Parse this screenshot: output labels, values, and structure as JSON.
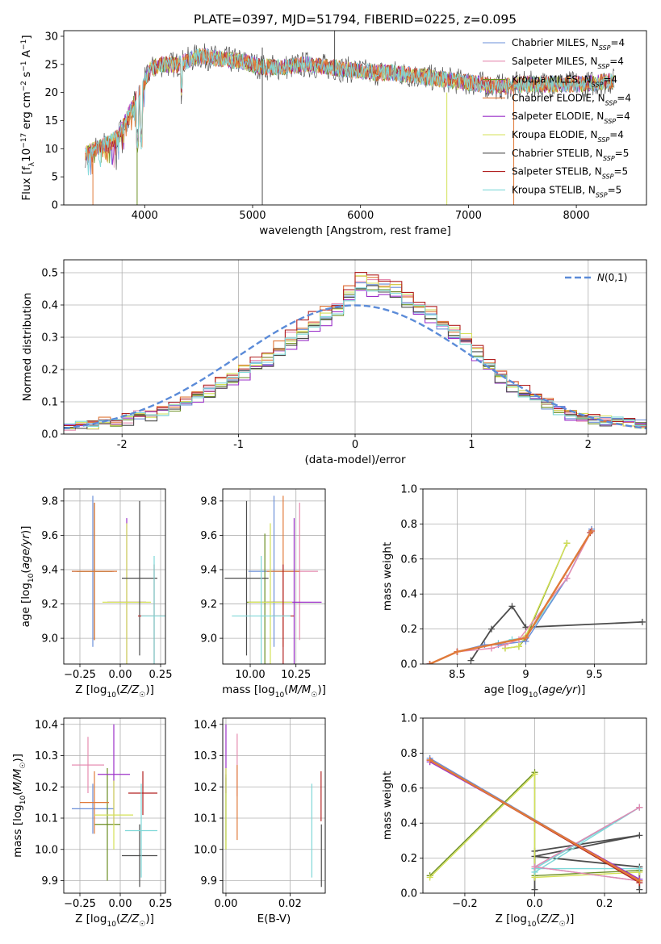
{
  "title": "PLATE=0397, MJD=51794, FIBERID=0225, z=0.095",
  "colors": {
    "Chabrier MILES": "#6a8fd8",
    "Salpeter MILES": "#e58bb0",
    "Kroupa MILES": "#6b8e23",
    "Chabrier ELODIE": "#e07a3a",
    "Salpeter ELODIE": "#9b30c8",
    "Kroupa ELODIE": "#d4e157",
    "Chabrier STELIB": "#4d4d4d",
    "Salpeter STELIB": "#b22222",
    "Kroupa STELIB": "#7fd8d8",
    "normal": "#5b8bd8"
  },
  "chart_data": [
    {
      "type": "line",
      "panel": "spectrum",
      "xlabel": "wavelength [Angstrom, rest frame]",
      "ylabel": "Flux [fλ10⁻¹⁷ erg cm⁻² s⁻¹ A⁻¹]",
      "xlim": [
        3250,
        8650
      ],
      "ylim": [
        0,
        31
      ],
      "xticks": [
        4000,
        5000,
        6000,
        7000,
        8000
      ],
      "yticks": [
        0,
        5,
        10,
        15,
        20,
        25,
        30
      ],
      "legend_placement": "top-right",
      "legend": [
        {
          "label": "Chabrier MILES, N",
          "sub": "SSP",
          "tail": "=4"
        },
        {
          "label": "Salpeter MILES, N",
          "sub": "SSP",
          "tail": "=4"
        },
        {
          "label": "Kroupa MILES, N",
          "sub": "SSP",
          "tail": "=4"
        },
        {
          "label": "Chabrier ELODIE, N",
          "sub": "SSP",
          "tail": "=4"
        },
        {
          "label": "Salpeter ELODIE, N",
          "sub": "SSP",
          "tail": "=4"
        },
        {
          "label": "Kroupa ELODIE, N",
          "sub": "SSP",
          "tail": "=4"
        },
        {
          "label": "Chabrier STELIB, N",
          "sub": "SSP",
          "tail": "=5"
        },
        {
          "label": "Salpeter STELIB, N",
          "sub": "SSP",
          "tail": "=5"
        },
        {
          "label": "Kroupa STELIB, N",
          "sub": "SSP",
          "tail": "=5"
        }
      ],
      "continuum": {
        "x": [
          3450,
          3550,
          3650,
          3750,
          3850,
          3950,
          4050,
          4150,
          4300,
          4500,
          4700,
          4900,
          5100,
          5300,
          5500,
          5700,
          5900,
          6100,
          6300,
          6500,
          6700,
          6900,
          7100,
          7300,
          7500,
          7700,
          7900,
          8100,
          8300
        ],
        "y": [
          9,
          10,
          11,
          12,
          16,
          20,
          24,
          25,
          25,
          26.5,
          26,
          25.5,
          24.5,
          24.5,
          25,
          24.5,
          24,
          23.5,
          23.5,
          23,
          22.5,
          22,
          21.5,
          21,
          21.5,
          21.5,
          21.5,
          21.5,
          22
        ]
      }
    },
    {
      "type": "bar",
      "panel": "residual-histogram",
      "xlabel": "(data-model)/error",
      "ylabel": "Normed distribution",
      "xlim": [
        -2.5,
        2.5
      ],
      "ylim": [
        0,
        0.54
      ],
      "xticks": [
        -2,
        -1,
        0,
        1,
        2
      ],
      "yticks": [
        0.0,
        0.1,
        0.2,
        0.3,
        0.4,
        0.5
      ],
      "bin_width": 0.1,
      "bin_start": -2.5,
      "reference_curve": "Gaussian mean 0, sigma 1",
      "legend": "N(0,1)",
      "legend_placement": "top-right",
      "values": [
        0.02,
        0.025,
        0.03,
        0.035,
        0.04,
        0.045,
        0.055,
        0.06,
        0.07,
        0.085,
        0.1,
        0.115,
        0.13,
        0.15,
        0.17,
        0.19,
        0.21,
        0.23,
        0.26,
        0.29,
        0.32,
        0.345,
        0.365,
        0.39,
        0.43,
        0.47,
        0.46,
        0.45,
        0.44,
        0.42,
        0.39,
        0.37,
        0.34,
        0.31,
        0.29,
        0.25,
        0.21,
        0.18,
        0.15,
        0.13,
        0.11,
        0.09,
        0.075,
        0.06,
        0.05,
        0.045,
        0.04,
        0.04,
        0.035,
        0.03
      ]
    },
    {
      "type": "scatter",
      "panel": "Z-vs-age",
      "xlabel": "Z [log10(Z/Z☉)]",
      "ylabel": "age [log10(age/yr)]",
      "xlim": [
        -0.35,
        0.28
      ],
      "ylim": [
        8.85,
        9.87
      ],
      "xticks": [
        -0.25,
        0.0,
        0.25
      ],
      "xtick_labels": [
        "−0.25",
        "0.00",
        "0.25"
      ],
      "yticks": [
        9.0,
        9.2,
        9.4,
        9.6,
        9.8
      ],
      "points": [
        {
          "series": "Chabrier MILES",
          "x": -0.17,
          "xe": 0.13,
          "y": 9.39,
          "ye": 0.44
        },
        {
          "series": "Salpeter MILES",
          "x": -0.16,
          "xe": 0.12,
          "y": 9.39,
          "ye": 0.4
        },
        {
          "series": "Kroupa MILES",
          "x": -0.16,
          "xe": 0.11,
          "y": 9.39,
          "ye": 0.4
        },
        {
          "series": "Chabrier ELODIE",
          "x": -0.16,
          "xe": 0.14,
          "y": 9.39,
          "ye": 0.4
        },
        {
          "series": "Salpeter ELODIE",
          "x": 0.04,
          "xe": 0.12,
          "y": 9.21,
          "ye": 0.49
        },
        {
          "series": "Kroupa ELODIE",
          "x": 0.04,
          "xe": 0.15,
          "y": 9.21,
          "ye": 0.46
        },
        {
          "series": "Chabrier STELIB",
          "x": 0.12,
          "xe": 0.11,
          "y": 9.35,
          "ye": 0.45
        },
        {
          "series": "Salpeter STELIB",
          "x": 0.21,
          "xe": 0.1,
          "y": 9.13,
          "ye": 0.3
        },
        {
          "series": "Kroupa STELIB",
          "x": 0.21,
          "xe": 0.08,
          "y": 9.13,
          "ye": 0.35
        }
      ]
    },
    {
      "type": "scatter",
      "panel": "mass-vs-age",
      "xlabel": "mass [log10(M/M☉)]",
      "ylabel": "",
      "xlim": [
        9.85,
        10.41
      ],
      "ylim": [
        8.85,
        9.87
      ],
      "xticks": [
        10.0,
        10.25
      ],
      "xtick_labels": [
        "10.00",
        "10.25"
      ],
      "yticks": [
        9.0,
        9.2,
        9.4,
        9.6,
        9.8
      ],
      "points": [
        {
          "series": "Chabrier MILES",
          "x": 10.13,
          "xe": 0.14,
          "y": 9.39,
          "ye": 0.44
        },
        {
          "series": "Salpeter MILES",
          "x": 10.27,
          "xe": 0.1,
          "y": 9.39,
          "ye": 0.4
        },
        {
          "series": "Kroupa MILES",
          "x": 10.08,
          "xe": 0.1,
          "y": 9.21,
          "ye": 0.4
        },
        {
          "series": "Chabrier ELODIE",
          "x": 10.18,
          "xe": 0.09,
          "y": 9.39,
          "ye": 0.44
        },
        {
          "series": "Salpeter ELODIE",
          "x": 10.24,
          "xe": 0.15,
          "y": 9.21,
          "ye": 0.49
        },
        {
          "series": "Kroupa ELODIE",
          "x": 10.11,
          "xe": 0.12,
          "y": 9.21,
          "ye": 0.46
        },
        {
          "series": "Chabrier STELIB",
          "x": 9.98,
          "xe": 0.12,
          "y": 9.35,
          "ye": 0.45
        },
        {
          "series": "Salpeter STELIB",
          "x": 10.18,
          "xe": 0.06,
          "y": 9.13,
          "ye": 0.3
        },
        {
          "series": "Kroupa STELIB",
          "x": 10.06,
          "xe": 0.16,
          "y": 9.13,
          "ye": 0.35
        }
      ]
    },
    {
      "type": "line",
      "panel": "age-mass-weight",
      "xlabel": "age [log10(age/yr)]",
      "ylabel": "mass weight",
      "xlim": [
        8.25,
        9.88
      ],
      "ylim": [
        0,
        1.0
      ],
      "xticks": [
        8.5,
        9.0,
        9.5
      ],
      "yticks": [
        0.0,
        0.2,
        0.4,
        0.6,
        0.8,
        1.0
      ],
      "series": [
        {
          "name": "Chabrier MILES",
          "x": [
            8.3,
            8.5,
            8.7,
            8.8,
            9.0,
            9.3,
            9.48
          ],
          "y": [
            0.0,
            0.07,
            0.11,
            0.11,
            0.13,
            0.49,
            0.77
          ]
        },
        {
          "name": "Salpeter MILES",
          "x": [
            8.3,
            8.5,
            8.75,
            8.85,
            8.95,
            9.3,
            9.48
          ],
          "y": [
            0.0,
            0.07,
            0.09,
            0.11,
            0.14,
            0.49,
            0.76
          ]
        },
        {
          "name": "Kroupa MILES",
          "x": [
            8.85,
            8.95,
            9.0,
            9.3
          ],
          "y": [
            0.09,
            0.1,
            0.15,
            0.69
          ]
        },
        {
          "name": "Chabrier ELODIE",
          "x": [
            8.3,
            8.5,
            9.0,
            9.48
          ],
          "y": [
            0.0,
            0.07,
            0.15,
            0.76
          ]
        },
        {
          "name": "Salpeter ELODIE",
          "x": [
            8.3,
            8.5,
            9.0,
            9.48
          ],
          "y": [
            0.0,
            0.07,
            0.15,
            0.76
          ]
        },
        {
          "name": "Kroupa ELODIE",
          "x": [
            8.85,
            8.95,
            9.0,
            9.3
          ],
          "y": [
            0.09,
            0.1,
            0.16,
            0.69
          ]
        },
        {
          "name": "Chabrier STELIB",
          "x": [
            8.6,
            8.75,
            8.9,
            9.0,
            9.85
          ],
          "y": [
            0.02,
            0.2,
            0.33,
            0.21,
            0.24
          ]
        },
        {
          "name": "Salpeter STELIB",
          "x": [
            8.3,
            8.5,
            9.0,
            9.47
          ],
          "y": [
            0.0,
            0.07,
            0.15,
            0.75
          ]
        },
        {
          "name": "Kroupa STELIB",
          "x": [
            8.8,
            8.9,
            9.0,
            9.3
          ],
          "y": [
            0.12,
            0.14,
            0.15,
            0.49
          ]
        }
      ]
    },
    {
      "type": "scatter",
      "panel": "Z-vs-mass",
      "xlabel": "Z [log10(Z/Z☉)]",
      "ylabel": "mass [log10(M/M☉)]",
      "xlim": [
        -0.35,
        0.28
      ],
      "ylim": [
        9.86,
        10.42
      ],
      "xticks": [
        -0.25,
        0.0,
        0.25
      ],
      "xtick_labels": [
        "−0.25",
        "0.00",
        "0.25"
      ],
      "yticks": [
        9.9,
        10.0,
        10.1,
        10.2,
        10.3,
        10.4
      ],
      "points": [
        {
          "series": "Chabrier MILES",
          "x": -0.17,
          "xe": 0.13,
          "y": 10.13,
          "ye": 0.08
        },
        {
          "series": "Salpeter MILES",
          "x": -0.2,
          "xe": 0.1,
          "y": 10.27,
          "ye": 0.09
        },
        {
          "series": "Kroupa MILES",
          "x": -0.08,
          "xe": 0.08,
          "y": 10.08,
          "ye": 0.18
        },
        {
          "series": "Chabrier ELODIE",
          "x": -0.16,
          "xe": 0.09,
          "y": 10.15,
          "ye": 0.1
        },
        {
          "series": "Salpeter ELODIE",
          "x": -0.04,
          "xe": 0.1,
          "y": 10.24,
          "ye": 0.16
        },
        {
          "series": "Kroupa ELODIE",
          "x": -0.04,
          "xe": 0.12,
          "y": 10.11,
          "ye": 0.11
        },
        {
          "series": "Chabrier STELIB",
          "x": 0.12,
          "xe": 0.11,
          "y": 9.98,
          "ye": 0.1
        },
        {
          "series": "Salpeter STELIB",
          "x": 0.14,
          "xe": 0.09,
          "y": 10.18,
          "ye": 0.07
        },
        {
          "series": "Kroupa STELIB",
          "x": 0.13,
          "xe": 0.1,
          "y": 10.06,
          "ye": 0.15
        }
      ]
    },
    {
      "type": "scatter",
      "panel": "EBV-vs-mass",
      "xlabel": "E(B-V)",
      "ylabel": "",
      "xlim": [
        -0.001,
        0.031
      ],
      "ylim": [
        9.86,
        10.42
      ],
      "xticks": [
        0.0,
        0.02
      ],
      "xtick_labels": [
        "0.00",
        "0.02"
      ],
      "yticks": [
        9.9,
        10.0,
        10.1,
        10.2,
        10.3,
        10.4
      ],
      "points": [
        {
          "series": "Chabrier MILES",
          "x": 0.0,
          "xe": 0.0,
          "y": 10.13,
          "ye": 0.1
        },
        {
          "series": "Salpeter MILES",
          "x": 0.0035,
          "xe": 0.0,
          "y": 10.27,
          "ye": 0.1
        },
        {
          "series": "Kroupa MILES",
          "x": 0.0,
          "xe": 0.0,
          "y": 10.12,
          "ye": 0.12
        },
        {
          "series": "Chabrier ELODIE",
          "x": 0.0035,
          "xe": 0.0,
          "y": 10.15,
          "ye": 0.12
        },
        {
          "series": "Salpeter ELODIE",
          "x": 0.0,
          "xe": 0.0,
          "y": 10.29,
          "ye": 0.11
        },
        {
          "series": "Kroupa ELODIE",
          "x": 0.0,
          "xe": 0.0,
          "y": 10.13,
          "ye": 0.13
        },
        {
          "series": "Chabrier STELIB",
          "x": 0.0298,
          "xe": 0.0,
          "y": 9.98,
          "ye": 0.1
        },
        {
          "series": "Salpeter STELIB",
          "x": 0.0297,
          "xe": 0.0,
          "y": 10.17,
          "ye": 0.08
        },
        {
          "series": "Kroupa STELIB",
          "x": 0.0268,
          "xe": 0.0,
          "y": 10.06,
          "ye": 0.15
        }
      ]
    },
    {
      "type": "line",
      "panel": "Z-mass-weight",
      "xlabel": "Z [log10(Z/Z☉)]",
      "ylabel": "mass weight",
      "xlim": [
        -0.32,
        0.32
      ],
      "ylim": [
        0,
        1.0
      ],
      "xticks": [
        -0.2,
        0.0,
        0.2
      ],
      "xtick_labels": [
        "−0.2",
        "0.0",
        "0.2"
      ],
      "yticks": [
        0.0,
        0.2,
        0.4,
        0.6,
        0.8,
        1.0
      ],
      "series": [
        {
          "name": "Chabrier MILES",
          "x": [
            -0.3,
            0.3,
            0.0,
            0.3
          ],
          "y": [
            0.77,
            0.07,
            0.15,
            0.49
          ]
        },
        {
          "name": "Salpeter MILES",
          "x": [
            -0.3,
            0.3,
            0.0,
            0.3
          ],
          "y": [
            0.76,
            0.07,
            0.15,
            0.49
          ]
        },
        {
          "name": "Kroupa MILES",
          "x": [
            -0.3,
            0.0,
            0.0,
            0.3
          ],
          "y": [
            0.1,
            0.69,
            0.1,
            0.13
          ]
        },
        {
          "name": "Chabrier ELODIE",
          "x": [
            -0.3,
            0.3
          ],
          "y": [
            0.76,
            0.07
          ]
        },
        {
          "name": "Salpeter ELODIE",
          "x": [
            -0.3,
            0.3
          ],
          "y": [
            0.75,
            0.08
          ]
        },
        {
          "name": "Kroupa ELODIE",
          "x": [
            -0.3,
            0.0,
            0.0,
            0.3
          ],
          "y": [
            0.09,
            0.68,
            0.09,
            0.12
          ]
        },
        {
          "name": "Chabrier STELIB",
          "x": [
            0.0,
            0.0,
            0.3,
            0.0,
            0.3,
            0.3
          ],
          "y": [
            0.02,
            0.24,
            0.33,
            0.21,
            0.15,
            0.02
          ]
        },
        {
          "name": "Salpeter STELIB",
          "x": [
            -0.3,
            0.3
          ],
          "y": [
            0.76,
            0.06
          ]
        },
        {
          "name": "Kroupa STELIB",
          "x": [
            0.0,
            0.3,
            0.0,
            0.3
          ],
          "y": [
            0.12,
            0.49,
            0.14,
            0.14
          ]
        }
      ]
    }
  ]
}
